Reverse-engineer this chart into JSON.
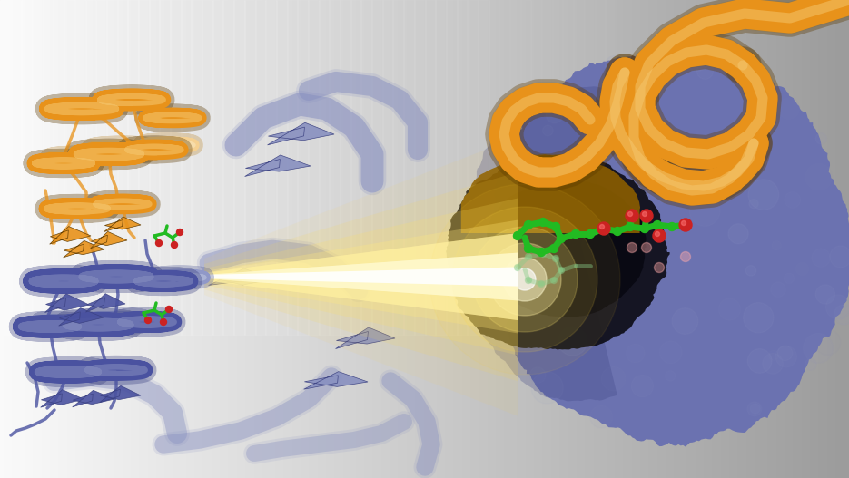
{
  "fig_width": 9.35,
  "fig_height": 5.27,
  "dpi": 100,
  "orange_color": "#E8921A",
  "orange_light": "#F5C870",
  "orange_dark": "#8B5E00",
  "orange_shadow": "#5A3800",
  "blue_color": "#6B72B0",
  "blue_dark": "#3A4080",
  "blue_mid": "#5560A0",
  "blue_light": "#9098C8",
  "blue_ribbon": "#4A52A0",
  "blue_ribbon_light": "#8890C0",
  "surface_black": "#080812",
  "surface_dark": "#12121E",
  "green_stick": "#22BB22",
  "red_sphere": "#CC2222",
  "bg_left": "#E8E8E8",
  "bg_right": "#BBBBBB",
  "beam_color": "#FFE070",
  "beam_white": "#FFFDE8"
}
